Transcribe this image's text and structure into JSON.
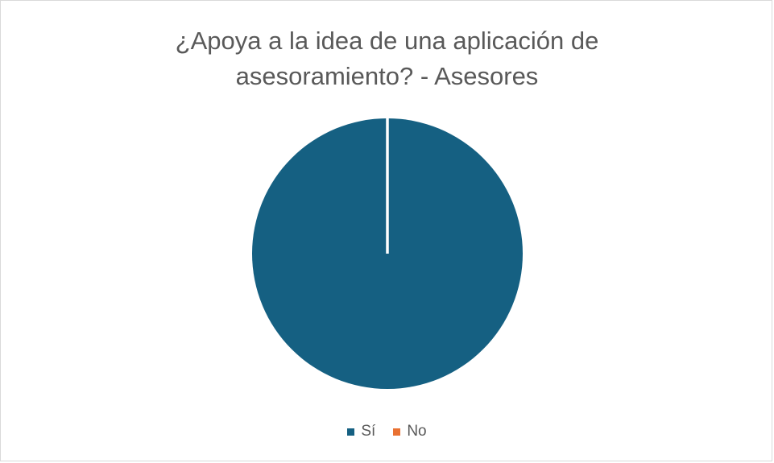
{
  "chart_data": {
    "type": "pie",
    "title_lines": [
      "¿Apoya a la idea de una aplicación de",
      "asesoramiento?  - Asesores"
    ],
    "categories": [
      "Sí",
      "No"
    ],
    "values": [
      100,
      0
    ],
    "colors": [
      "#156082",
      "#e97132"
    ],
    "legend_position": "bottom"
  }
}
